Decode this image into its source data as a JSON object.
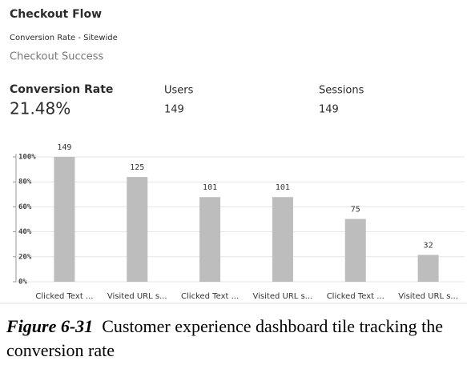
{
  "chart_data": {
    "type": "bar",
    "title": "Checkout Flow",
    "subtitle": "Conversion Rate - Sitewide",
    "chart_name": "Checkout Success",
    "metrics": [
      {
        "label": "Conversion Rate",
        "value": "21.48%"
      },
      {
        "label": "Users",
        "value": "149"
      },
      {
        "label": "Sessions",
        "value": "149"
      }
    ],
    "categories": [
      "Clicked Text ...",
      "Visited URL s...",
      "Clicked Text ...",
      "Visited URL s...",
      "Clicked Text ...",
      "Visited URL s..."
    ],
    "values": [
      100,
      83.9,
      67.8,
      67.8,
      50.3,
      21.5
    ],
    "value_labels": [
      "149",
      "125",
      "101",
      "101",
      "75",
      "32"
    ],
    "color": "#bdbdbd",
    "ylim": [
      0,
      100
    ],
    "yticks": [
      {
        "value": 0,
        "label": "0%"
      },
      {
        "value": 20,
        "label": "20%"
      },
      {
        "value": 40,
        "label": "40%"
      },
      {
        "value": 60,
        "label": "60%"
      },
      {
        "value": 80,
        "label": "80%"
      },
      {
        "value": 100,
        "label": "100%"
      }
    ],
    "grid": true,
    "caption": {
      "label": "Figure 6-31",
      "text": "Customer experience dashboard tile tracking the conversion rate"
    }
  }
}
